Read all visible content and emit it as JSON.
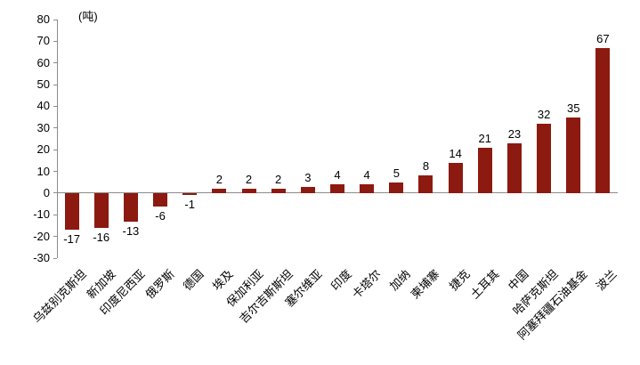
{
  "chart_data": {
    "type": "bar",
    "title": "",
    "unit_label": "(吨)",
    "xlabel": "",
    "ylabel": "(吨)",
    "categories": [
      "乌兹别克斯坦",
      "新加坡",
      "印度尼西亚",
      "俄罗斯",
      "德国",
      "埃及",
      "保加利亚",
      "吉尔吉斯斯坦",
      "塞尔维亚",
      "印度",
      "卡塔尔",
      "加纳",
      "柬埔寨",
      "捷克",
      "土耳其",
      "中国",
      "哈萨克斯坦",
      "阿塞拜疆石油基金",
      "波兰"
    ],
    "values": [
      -17,
      -16,
      -13,
      -6,
      -1,
      2,
      2,
      2,
      3,
      4,
      4,
      5,
      8,
      14,
      21,
      23,
      32,
      35,
      67
    ],
    "ylim": [
      -30,
      80
    ],
    "yticks": [
      -30,
      -20,
      -10,
      0,
      10,
      20,
      30,
      40,
      50,
      60,
      70,
      80
    ],
    "grid": false,
    "legend": null,
    "bar_color": "#8c1a10",
    "axis_color": "#8c8c8c",
    "text_color": "#000000"
  }
}
